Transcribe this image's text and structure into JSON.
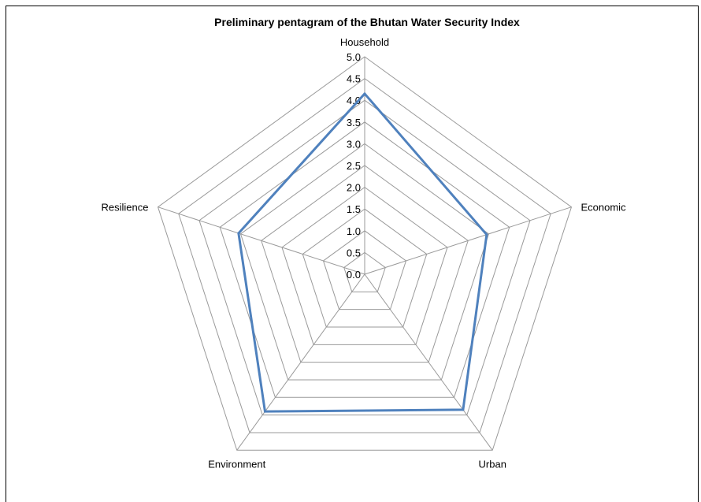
{
  "chart_data": {
    "type": "radar",
    "title": "Preliminary pentagram of the Bhutan Water Security Index",
    "categories": [
      "Household",
      "Economic",
      "Urban",
      "Environment",
      "Resilience"
    ],
    "series": [
      {
        "values": [
          4.15,
          2.95,
          3.85,
          3.9,
          3.05
        ]
      }
    ],
    "rlim": [
      0,
      5
    ],
    "ticks": [
      "0.0",
      "0.5",
      "1.0",
      "1.5",
      "2.0",
      "2.5",
      "3.0",
      "3.5",
      "4.0",
      "4.5",
      "5.0"
    ],
    "grid": true,
    "legend": "none",
    "series_color": "#4f81bd",
    "grid_color": "#9a9a9a"
  }
}
